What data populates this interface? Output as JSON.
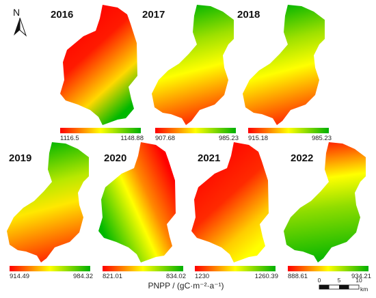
{
  "colors": {
    "red": "#ff0000",
    "yellow": "#ffff00",
    "green": "#00b000"
  },
  "north_label": "N",
  "legend_title": "PNPP / (gC·m⁻²·a⁻¹)",
  "scale_bar": {
    "labels": [
      "0",
      "5",
      "10"
    ],
    "unit": "km"
  },
  "panels": [
    {
      "year": "2016",
      "min": "1116.5",
      "max": "1148.88",
      "shape": "A",
      "gradient": {
        "angle": 150,
        "stops": [
          [
            "#ff0000",
            0
          ],
          [
            "#ff1a00",
            0.35
          ],
          [
            "#ffd800",
            0.72
          ],
          [
            "#00b800",
            1
          ]
        ]
      }
    },
    {
      "year": "2017",
      "min": "907.68",
      "max": "985.23",
      "shape": "B",
      "gradient": {
        "angle": 170,
        "stops": [
          [
            "#00b400",
            0
          ],
          [
            "#9de000",
            0.3
          ],
          [
            "#ffff00",
            0.55
          ],
          [
            "#ff2000",
            1
          ]
        ]
      }
    },
    {
      "year": "2018",
      "min": "915.18",
      "max": "985.23",
      "shape": "B",
      "gradient": {
        "angle": 170,
        "stops": [
          [
            "#00b400",
            0
          ],
          [
            "#9de000",
            0.3
          ],
          [
            "#ffff00",
            0.55
          ],
          [
            "#ff2000",
            1
          ]
        ]
      }
    },
    {
      "year": "2019",
      "min": "914.49",
      "max": "984.32",
      "shape": "B",
      "gradient": {
        "angle": 170,
        "stops": [
          [
            "#00b400",
            0
          ],
          [
            "#b9e800",
            0.35
          ],
          [
            "#ffe800",
            0.55
          ],
          [
            "#ff2000",
            1
          ]
        ]
      }
    },
    {
      "year": "2020",
      "min": "821.01",
      "max": "834.02",
      "shape": "A",
      "gradient": {
        "angle": 235,
        "stops": [
          [
            "#ff0000",
            0
          ],
          [
            "#ff8800",
            0.35
          ],
          [
            "#ffff00",
            0.55
          ],
          [
            "#00b800",
            1
          ]
        ]
      }
    },
    {
      "year": "2021",
      "min": "1230",
      "max": "1260.39",
      "shape": "A",
      "gradient": {
        "angle": 150,
        "stops": [
          [
            "#ff0000",
            0
          ],
          [
            "#ff2a00",
            0.45
          ],
          [
            "#ffcc00",
            0.8
          ],
          [
            "#ffff00",
            1
          ]
        ]
      }
    },
    {
      "year": "2022",
      "min": "888.61",
      "max": "934.21",
      "shape": "B",
      "gradient": {
        "angle": 175,
        "stops": [
          [
            "#ff2000",
            0
          ],
          [
            "#ffff00",
            0.3
          ],
          [
            "#90dd00",
            0.55
          ],
          [
            "#00b400",
            1
          ]
        ]
      }
    }
  ]
}
